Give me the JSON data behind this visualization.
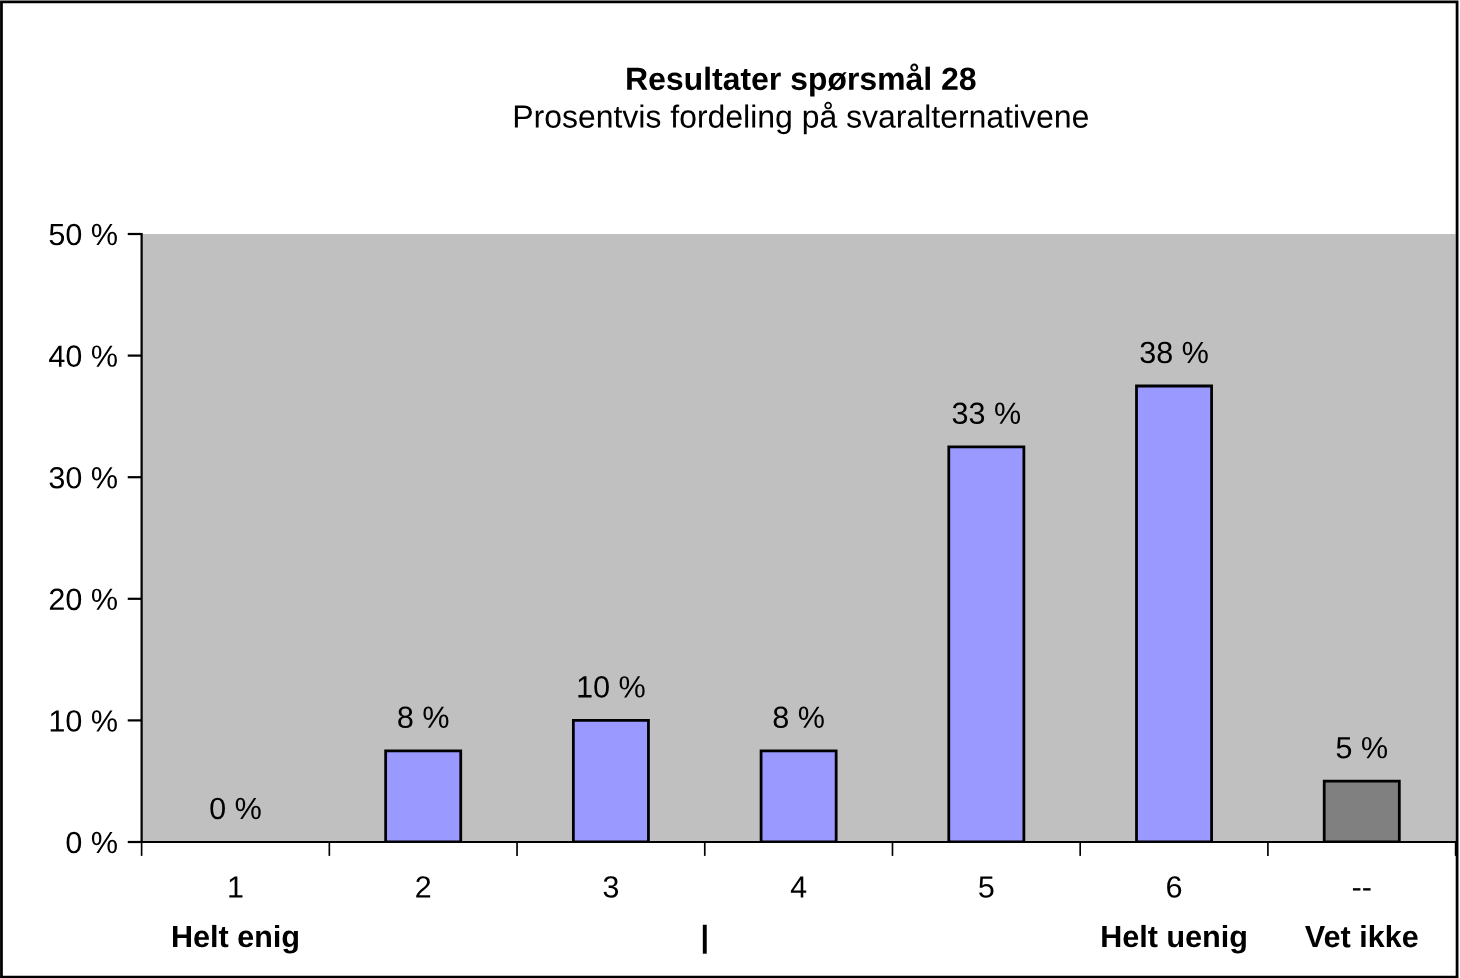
{
  "chart_data": {
    "type": "bar",
    "title": "Resultater spørsmål 28",
    "subtitle": "Prosentvis fordeling på svaralternativene",
    "categories": [
      "1",
      "2",
      "3",
      "4",
      "5",
      "6",
      "--"
    ],
    "values": [
      0,
      7.5,
      10,
      7.5,
      32.5,
      37.5,
      5
    ],
    "colors": [
      "#9999ff",
      "#9999ff",
      "#9999ff",
      "#9999ff",
      "#9999ff",
      "#9999ff",
      "#808080"
    ],
    "value_labels": [
      "0 %",
      "8 %",
      "10 %",
      "8 %",
      "33 %",
      "38 %",
      "5 %"
    ],
    "ylim": [
      0,
      50
    ],
    "yticks": [
      {
        "value": 0,
        "label": "0 %"
      },
      {
        "value": 10,
        "label": "10 %"
      },
      {
        "value": 20,
        "label": "20 %"
      },
      {
        "value": 30,
        "label": "30 %"
      },
      {
        "value": 40,
        "label": "40 %"
      },
      {
        "value": 50,
        "label": "50 %"
      }
    ],
    "grid": false,
    "legend": false,
    "annotations": [
      "Helt enig",
      "|",
      "Helt uenig",
      "Vet ikke"
    ]
  }
}
